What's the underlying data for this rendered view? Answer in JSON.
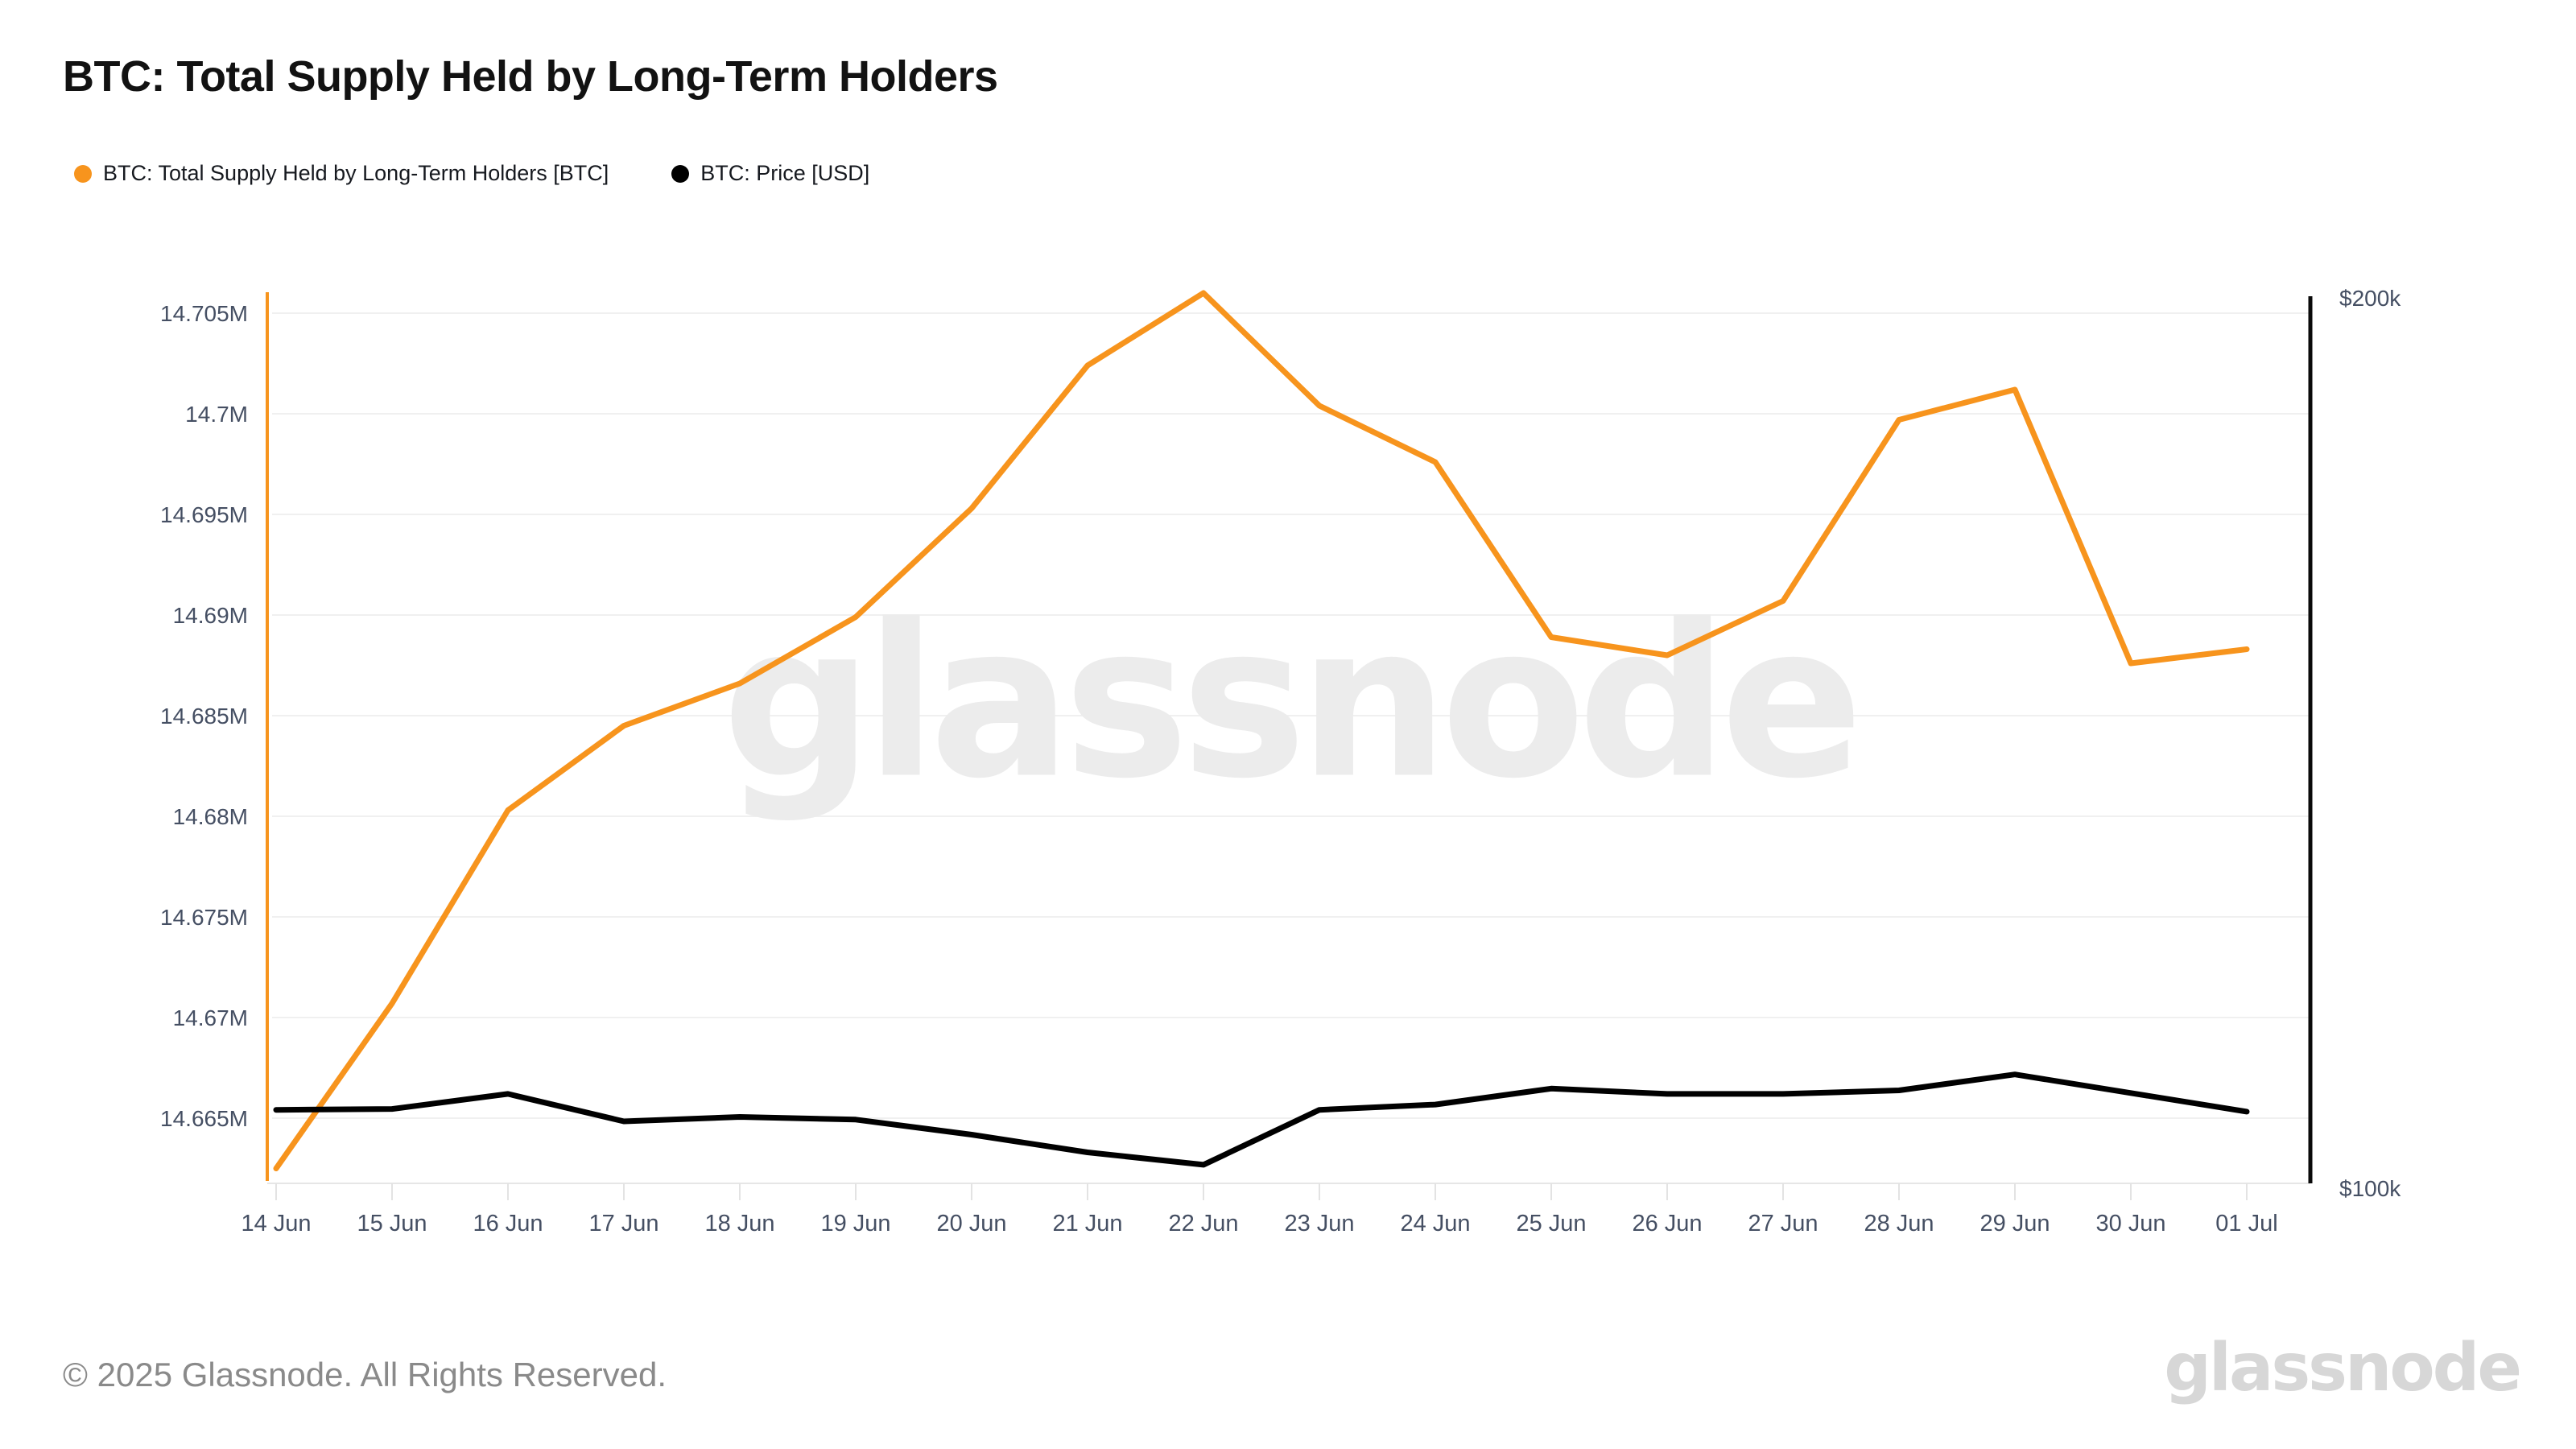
{
  "page": {
    "title": "BTC: Total Supply Held by Long-Term Holders",
    "footer": "© 2025 Glassnode. All Rights Reserved.",
    "watermark": "glassnode",
    "brand_logo": "glassnode"
  },
  "legend": {
    "items": [
      {
        "label": "BTC: Total Supply Held by Long-Term Holders [BTC]",
        "color": "#f7941d"
      },
      {
        "label": "BTC: Price [USD]",
        "color": "#000000"
      }
    ]
  },
  "colors": {
    "supply_line": "#f7941d",
    "price_line": "#000000",
    "left_axis_line": "#f7941d",
    "right_axis_line": "#0a0a0a",
    "gridline": "#f0f0f0",
    "axis_baseline": "#e6e6e6",
    "tick_mark": "#e3e3e3",
    "axis_label": "#454f63",
    "title_text": "#121212",
    "footer_text": "#8a8a8a",
    "watermark_text": "#ececec",
    "logo_text": "#d7d7d7"
  },
  "chart_data": {
    "type": "line",
    "title": "BTC: Total Supply Held by Long-Term Holders",
    "x": [
      "14 Jun",
      "15 Jun",
      "16 Jun",
      "17 Jun",
      "18 Jun",
      "19 Jun",
      "20 Jun",
      "21 Jun",
      "22 Jun",
      "23 Jun",
      "24 Jun",
      "25 Jun",
      "26 Jun",
      "27 Jun",
      "28 Jun",
      "29 Jun",
      "30 Jun",
      "01 Jul"
    ],
    "series": [
      {
        "name": "BTC: Total Supply Held by Long-Term Holders [BTC]",
        "yaxis": "left",
        "color": "#f7941d",
        "unit": "M BTC",
        "values": [
          14.6625,
          14.6707,
          14.6803,
          14.6845,
          14.6866,
          14.6899,
          14.6953,
          14.7024,
          14.706,
          14.7004,
          14.6976,
          14.6889,
          14.688,
          14.6907,
          14.6997,
          14.7012,
          14.6876,
          14.6883
        ]
      },
      {
        "name": "BTC: Price [USD]",
        "yaxis": "right",
        "color": "#000000",
        "unit": "k USD",
        "values": [
          108.3,
          108.4,
          110.1,
          107.0,
          107.5,
          107.2,
          105.5,
          103.5,
          102.1,
          108.3,
          108.9,
          110.7,
          110.1,
          110.1,
          110.5,
          112.3,
          110.2,
          108.1
        ]
      }
    ],
    "left_axis": {
      "tick_labels": [
        "14.705M",
        "14.7M",
        "14.695M",
        "14.69M",
        "14.685M",
        "14.68M",
        "14.675M",
        "14.67M",
        "14.665M"
      ],
      "tick_values": [
        14.705,
        14.7,
        14.695,
        14.69,
        14.685,
        14.68,
        14.675,
        14.67,
        14.665
      ],
      "range": [
        14.662,
        14.7061
      ]
    },
    "right_axis": {
      "tick_labels": [
        "$200k",
        "$100k"
      ],
      "tick_values": [
        200,
        100
      ],
      "range": [
        100,
        200.5
      ]
    },
    "grid": true,
    "legend_position": "top-left"
  }
}
